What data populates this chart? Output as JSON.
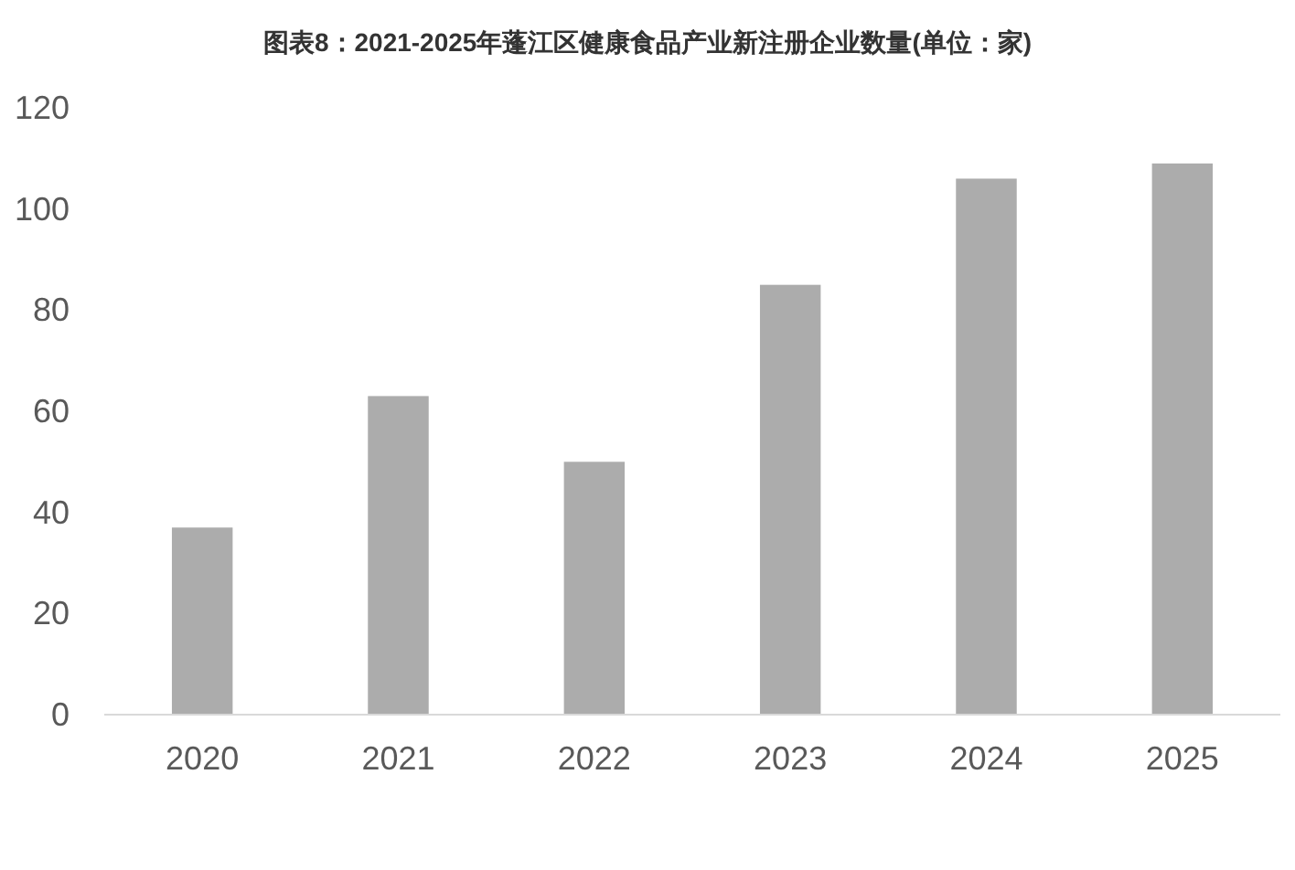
{
  "chart_data": {
    "type": "bar",
    "title": "图表8：2021-2025年蓬江区健康食品产业新注册企业数量(单位：家)",
    "categories": [
      "2020",
      "2021",
      "2022",
      "2023",
      "2024",
      "2025"
    ],
    "values": [
      37,
      63,
      50,
      85,
      106,
      109
    ],
    "color": "#acacac",
    "ylim": [
      0,
      120
    ],
    "yticks": [
      0,
      20,
      40,
      60,
      80,
      100,
      120
    ],
    "grid": false
  }
}
